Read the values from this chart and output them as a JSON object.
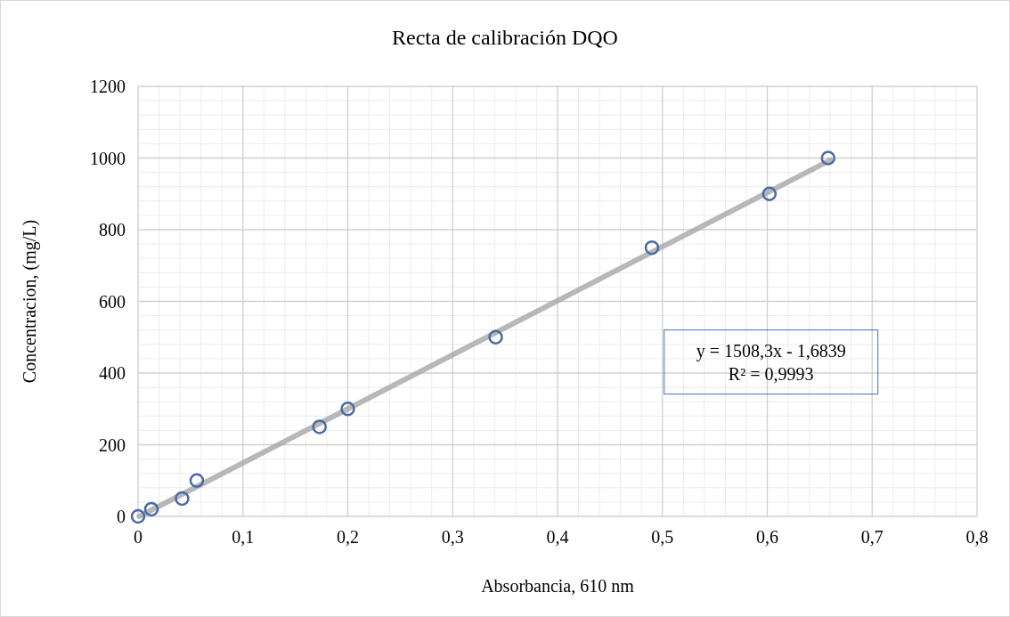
{
  "chart_data": {
    "type": "scatter",
    "title": "Recta de calibración DQO",
    "xlabel": "Absorbancia,  610 nm",
    "ylabel": "Concentracion,  (mg/L)",
    "series": [
      {
        "type": "line",
        "color": "#a6a6a6",
        "x": [
          0.0011,
          0.66
        ],
        "values": [
          0,
          994
        ]
      },
      {
        "color": "#4a6aa5",
        "marker": "circle",
        "x": [
          0,
          0.0127,
          0.042,
          0.056,
          0.173,
          0.2,
          0.341,
          0.49,
          0.602,
          0.658
        ],
        "values": [
          0,
          20,
          50,
          100,
          250,
          300,
          500,
          750,
          900,
          1000
        ]
      }
    ],
    "xlim": [
      0,
      0.8
    ],
    "xticks": [
      {
        "value": 0,
        "label": "0"
      },
      {
        "value": 0.1,
        "label": "0,1"
      },
      {
        "value": 0.2,
        "label": "0,2"
      },
      {
        "value": 0.3,
        "label": "0,3"
      },
      {
        "value": 0.4,
        "label": "0,4"
      },
      {
        "value": 0.5,
        "label": "0,5"
      },
      {
        "value": 0.6,
        "label": "0,6"
      },
      {
        "value": 0.7,
        "label": "0,7"
      },
      {
        "value": 0.8,
        "label": "0,8"
      }
    ],
    "ylim": [
      0,
      1200
    ],
    "yticks": [
      0,
      200,
      400,
      600,
      800,
      1000,
      1200
    ],
    "grid": true,
    "annotations": [
      "y = 1508,3x - 1,6839\nR² = 0,9993"
    ]
  }
}
